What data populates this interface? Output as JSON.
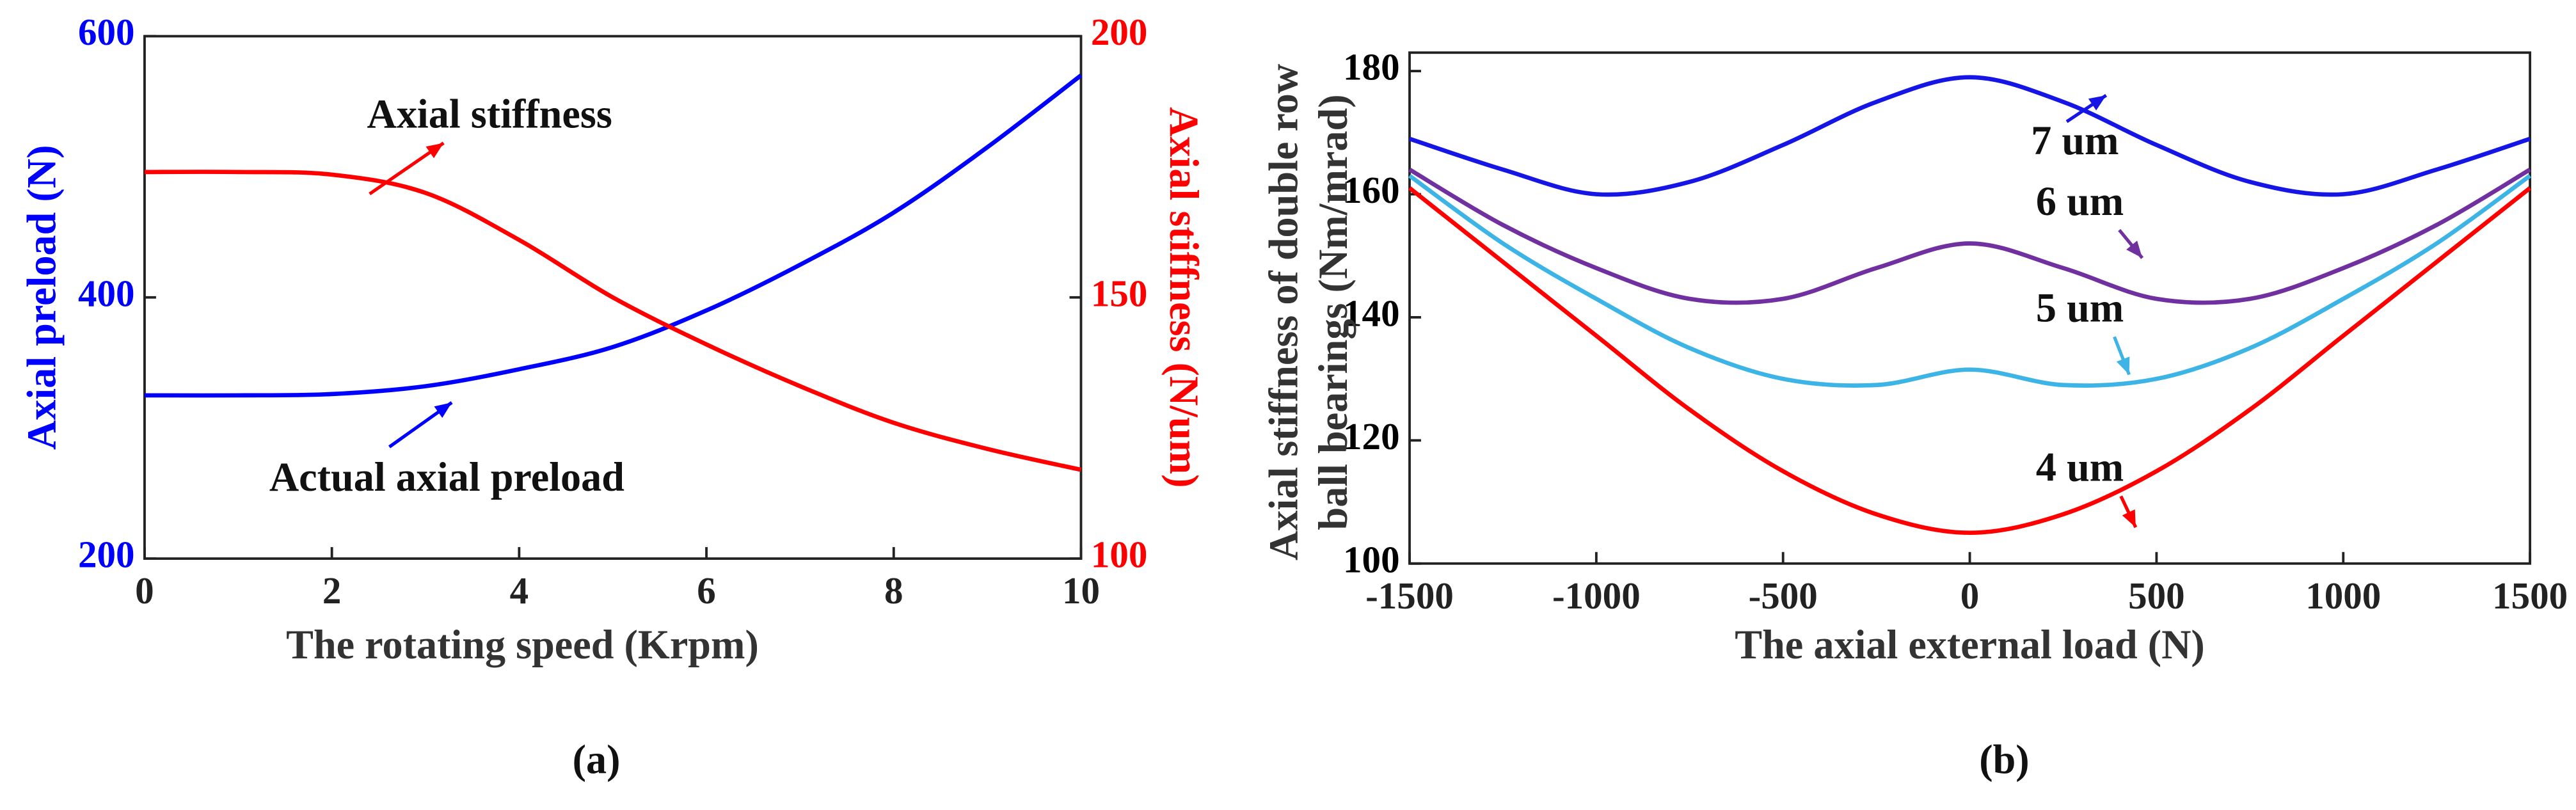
{
  "chart_data": [
    {
      "type": "line",
      "caption": "(a)",
      "xlabel": "The rotating speed (Krpm)",
      "ylabel": "Axial preload (N)",
      "y2label": "Axial stiffness (N/um)",
      "x": [
        0,
        1,
        2,
        3,
        4,
        5,
        6,
        7,
        8,
        9,
        10
      ],
      "series": [
        {
          "name": "Actual axial preload",
          "color": "#0000ff",
          "values": [
            325,
            325,
            326,
            332,
            345,
            362,
            390,
            425,
            465,
            515,
            570
          ]
        },
        {
          "name": "Axial stiffness",
          "color": "#ff0000",
          "axis": "y2",
          "values": [
            174,
            174,
            173.5,
            170,
            161,
            150,
            141,
            133,
            126,
            121,
            117
          ]
        }
      ],
      "annotations": [
        "Axial stiffness",
        "Actual axial preload"
      ],
      "xlim": [
        0,
        10
      ],
      "xticks": [
        0,
        2,
        4,
        6,
        8,
        10
      ],
      "ylim": [
        200,
        600
      ],
      "yticks": [
        200,
        400,
        600
      ],
      "y2lim": [
        100,
        200
      ],
      "y2ticks": [
        100,
        150,
        200
      ],
      "grid": false
    },
    {
      "type": "line",
      "caption": "(b)",
      "xlabel": "The axial external load (N)",
      "ylabel": [
        "Axial stiffness of double row",
        "ball bearings (Nm/mrad)"
      ],
      "x": [
        -1500,
        -1250,
        -1000,
        -750,
        -500,
        -250,
        0,
        250,
        500,
        750,
        1000,
        1250,
        1500
      ],
      "series": [
        {
          "name": "7 um",
          "color": "#1515e6",
          "values": [
            169,
            164,
            160,
            162,
            168,
            175,
            179,
            175,
            168,
            162,
            160,
            164,
            169
          ]
        },
        {
          "name": "6 um",
          "color": "#7030a0",
          "values": [
            164,
            155,
            148,
            143,
            143,
            148,
            152,
            148,
            143,
            143,
            148,
            155,
            164
          ]
        },
        {
          "name": "5 um",
          "color": "#3cb4e6",
          "values": [
            163,
            152,
            143,
            135,
            130,
            129,
            131.5,
            129,
            130,
            135,
            143,
            152,
            163
          ]
        },
        {
          "name": "4 um",
          "color": "#ff0000",
          "values": [
            161,
            149,
            137,
            125,
            115,
            108,
            105,
            108,
            115,
            125,
            137,
            149,
            161
          ]
        }
      ],
      "xlim": [
        -1500,
        1500
      ],
      "xticks": [
        -1500,
        -1000,
        -500,
        0,
        500,
        1000,
        1500
      ],
      "ylim": [
        100,
        183
      ],
      "yticks": [
        100,
        120,
        140,
        160,
        180
      ],
      "grid": false
    }
  ]
}
